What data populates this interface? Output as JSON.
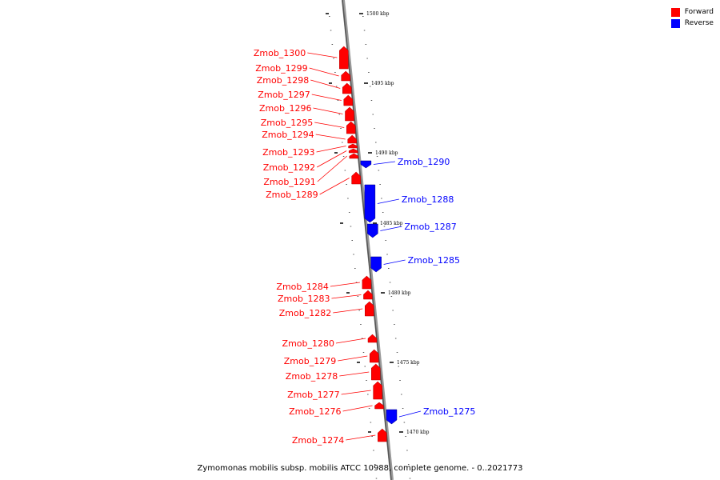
{
  "legend": {
    "forward_label": "Forward",
    "reverse_label": "Reverse",
    "forward_color": "#ff0000",
    "reverse_color": "#0000ff"
  },
  "caption": "Zymomonas mobilis subsp. mobilis ATCC 10988, complete genome. - 0..2021773",
  "scale_ticks": [
    "1500 kbp",
    "1495 kbp",
    "1490 kbp",
    "1485 kbp",
    "1480 kbp",
    "1475 kbp",
    "1470 kbp"
  ],
  "forward_genes": [
    "Zmob_1300",
    "Zmob_1299",
    "Zmob_1298",
    "Zmob_1297",
    "Zmob_1296",
    "Zmob_1295",
    "Zmob_1294",
    "Zmob_1293",
    "Zmob_1292",
    "Zmob_1291",
    "Zmob_1289",
    "Zmob_1284",
    "Zmob_1283",
    "Zmob_1282",
    "Zmob_1280",
    "Zmob_1279",
    "Zmob_1278",
    "Zmob_1277",
    "Zmob_1276",
    "Zmob_1274"
  ],
  "reverse_genes": [
    "Zmob_1290",
    "Zmob_1288",
    "Zmob_1287",
    "Zmob_1285",
    "Zmob_1275"
  ]
}
